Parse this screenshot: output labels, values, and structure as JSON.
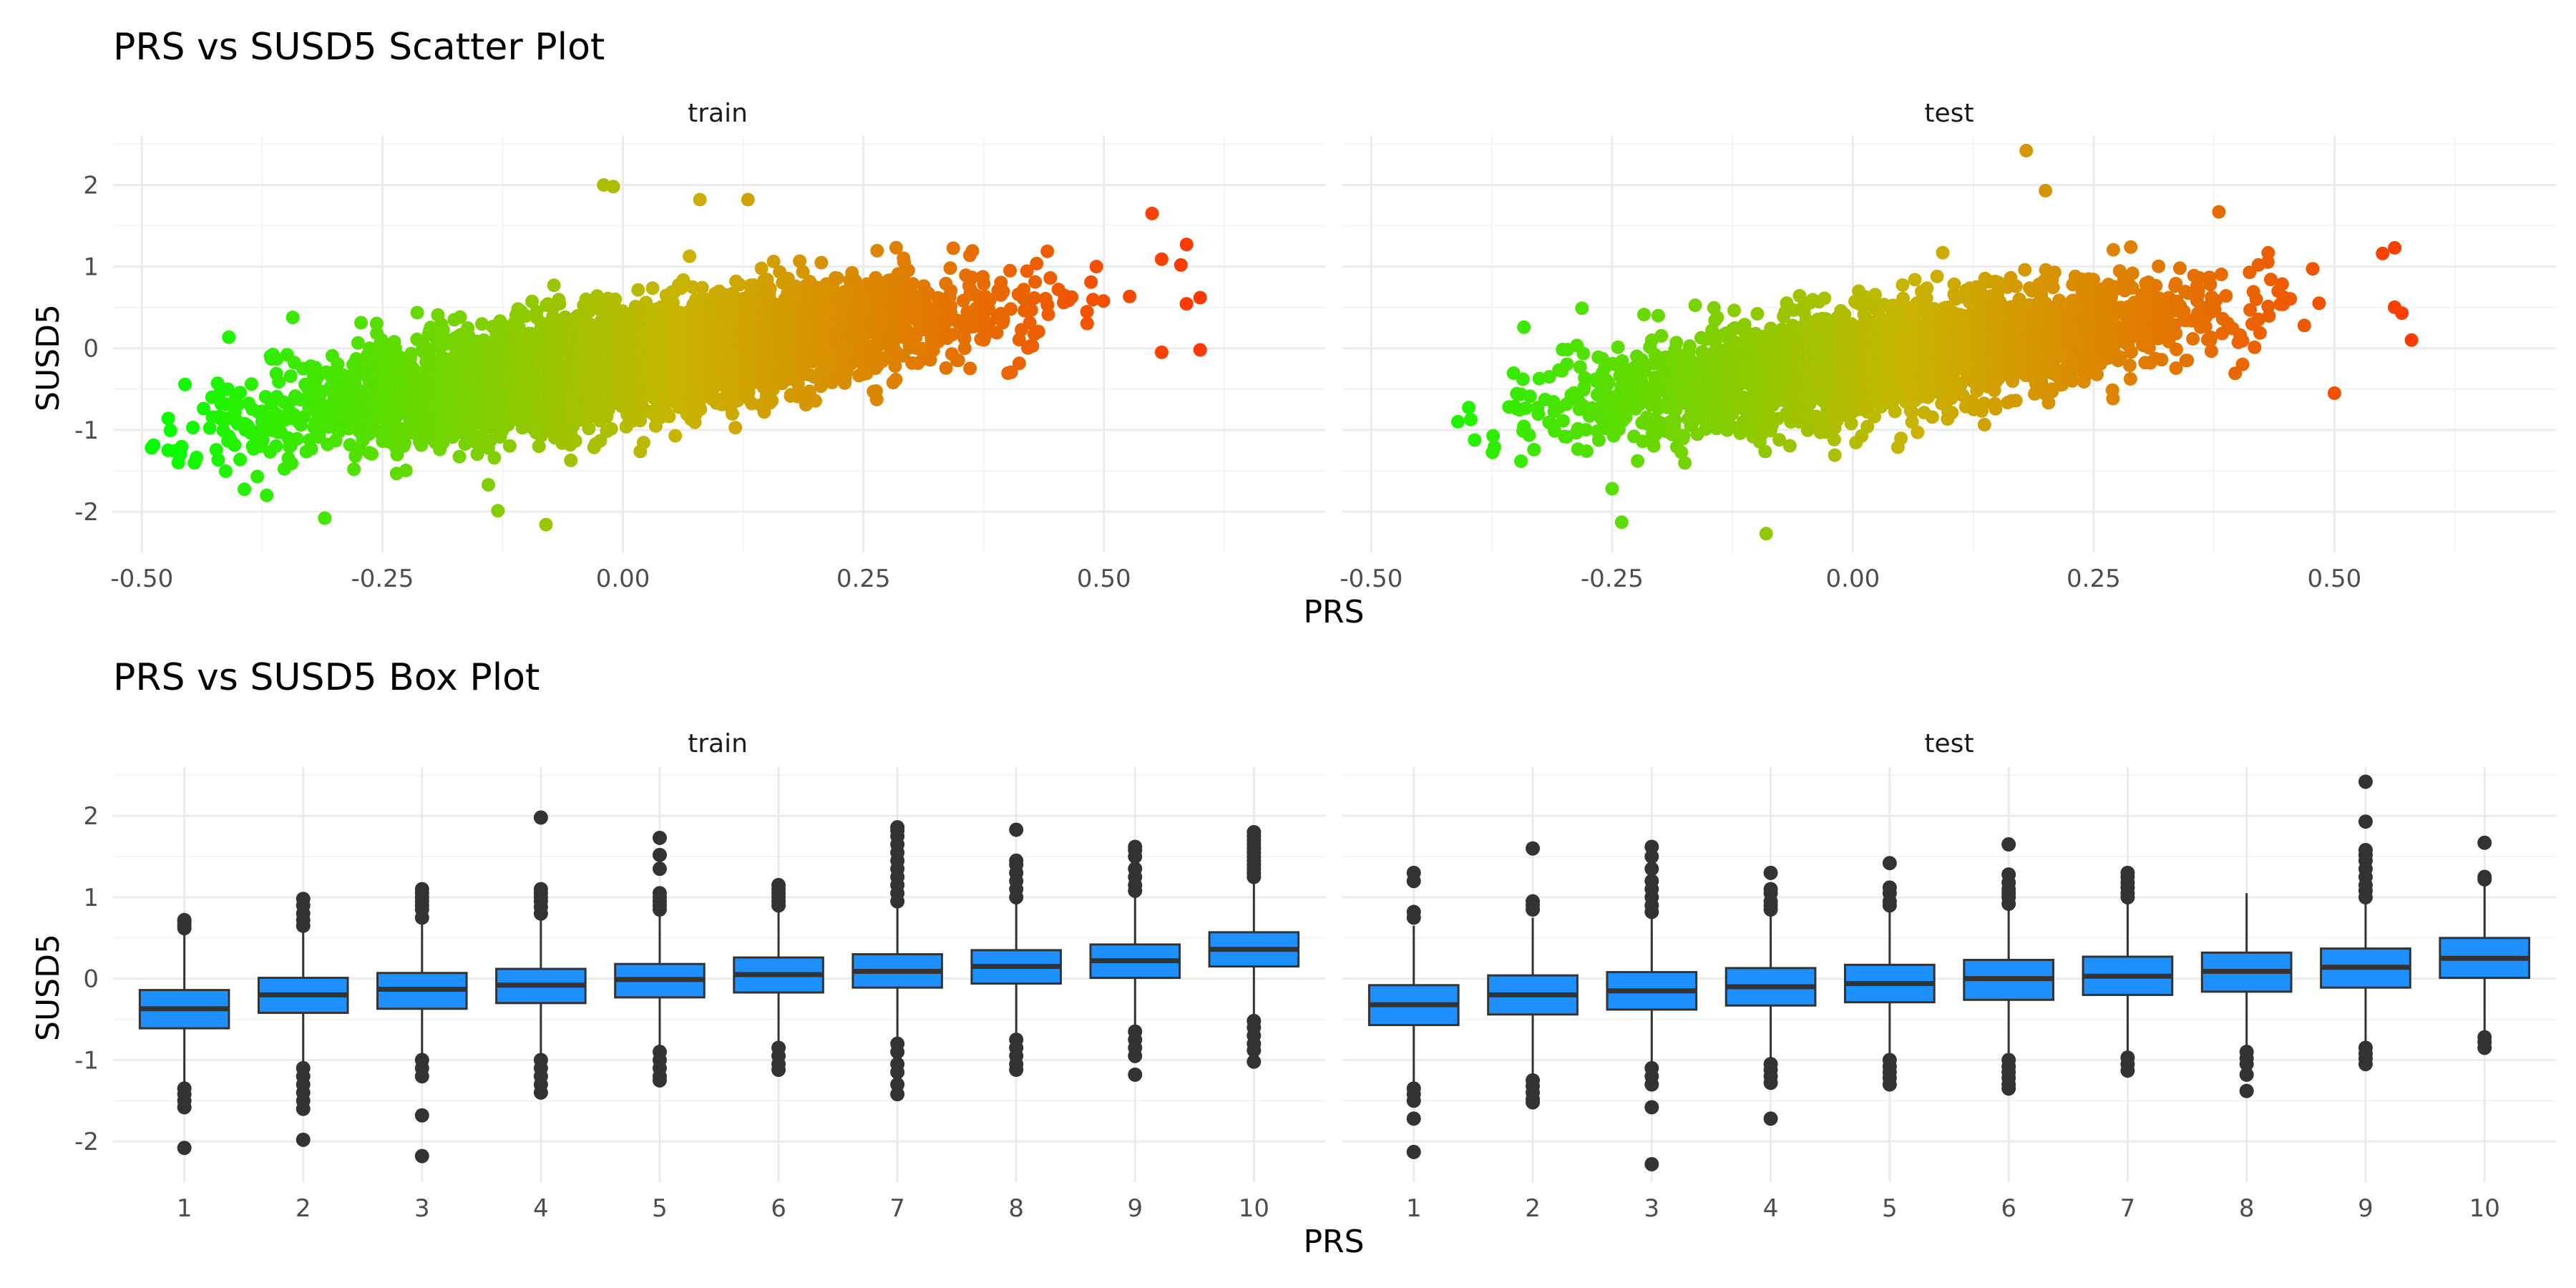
{
  "chart_data": [
    {
      "type": "scatter",
      "title": "PRS vs SUSD5 Scatter Plot",
      "xlabel": "PRS",
      "ylabel": "SUSD5",
      "facets": [
        "train",
        "test"
      ],
      "x_ticks": [
        "-0.50",
        "-0.25",
        "0.00",
        "0.25",
        "0.50"
      ],
      "y_ticks": [
        "-2",
        "-1",
        "0",
        "1",
        "2"
      ],
      "xlim": [
        -0.53,
        0.73
      ],
      "ylim": [
        -2.5,
        2.6
      ],
      "grid": true,
      "color_gradient": {
        "low": "#00ff00",
        "mid": "#c8b400",
        "high": "#ff3300",
        "mapped_to": "PRS"
      },
      "relationship": {
        "slope": 1.8,
        "intercept": -0.18,
        "residual_sd": 0.33
      },
      "series": [
        {
          "facet": "train",
          "x_range": [
            -0.49,
            0.6
          ],
          "n_points": 4200,
          "notable_points": [
            {
              "x": -0.49,
              "y": -1.22
            },
            {
              "x": -0.46,
              "y": -1.28
            },
            {
              "x": -0.31,
              "y": -2.08
            },
            {
              "x": -0.08,
              "y": -2.16
            },
            {
              "x": -0.13,
              "y": -1.99
            },
            {
              "x": -0.02,
              "y": 2.0
            },
            {
              "x": -0.01,
              "y": 1.98
            },
            {
              "x": 0.08,
              "y": 1.82
            },
            {
              "x": 0.13,
              "y": 1.82
            },
            {
              "x": 0.55,
              "y": 1.65
            },
            {
              "x": 0.6,
              "y": 0.62
            },
            {
              "x": 0.6,
              "y": -0.02
            },
            {
              "x": 0.56,
              "y": -0.05
            },
            {
              "x": 0.58,
              "y": 1.02
            }
          ]
        },
        {
          "facet": "test",
          "x_range": [
            -0.41,
            0.58
          ],
          "n_points": 2600,
          "notable_points": [
            {
              "x": 0.18,
              "y": 2.42
            },
            {
              "x": 0.2,
              "y": 1.93
            },
            {
              "x": -0.25,
              "y": -1.72
            },
            {
              "x": -0.24,
              "y": -2.13
            },
            {
              "x": -0.09,
              "y": -2.27
            },
            {
              "x": -0.41,
              "y": -0.9
            },
            {
              "x": 0.58,
              "y": 0.1
            },
            {
              "x": 0.57,
              "y": 0.43
            },
            {
              "x": 0.55,
              "y": 1.16
            },
            {
              "x": 0.5,
              "y": -0.55
            },
            {
              "x": 0.38,
              "y": 1.67
            }
          ]
        }
      ]
    },
    {
      "type": "box",
      "title": "PRS vs SUSD5 Box Plot",
      "xlabel": "PRS",
      "ylabel": "SUSD5",
      "facets": [
        "train",
        "test"
      ],
      "categories": [
        "1",
        "2",
        "3",
        "4",
        "5",
        "6",
        "7",
        "8",
        "9",
        "10"
      ],
      "y_ticks": [
        "-2",
        "-1",
        "0",
        "1",
        "2"
      ],
      "ylim": [
        -2.5,
        2.6
      ],
      "box_color": "#1e90ff",
      "grid": true,
      "series": [
        {
          "facet": "train",
          "boxes": [
            {
              "q1": -0.61,
              "median": -0.37,
              "q3": -0.14,
              "whisker_low": -1.3,
              "whisker_high": 0.58,
              "outliers": [
                0.62,
                0.66,
                0.7,
                0.72,
                -1.35,
                -1.42,
                -1.5,
                -1.58,
                -2.08
              ]
            },
            {
              "q1": -0.42,
              "median": -0.2,
              "q3": 0.01,
              "whisker_low": -1.05,
              "whisker_high": 0.6,
              "outliers": [
                0.65,
                0.72,
                0.8,
                0.9,
                0.98,
                -1.1,
                -1.2,
                -1.3,
                -1.4,
                -1.5,
                -1.6,
                -1.98
              ]
            },
            {
              "q1": -0.37,
              "median": -0.13,
              "q3": 0.07,
              "whisker_low": -0.95,
              "whisker_high": 0.7,
              "outliers": [
                0.75,
                0.85,
                0.9,
                0.95,
                1.0,
                1.05,
                1.1,
                -1.0,
                -1.1,
                -1.2,
                -1.68,
                -2.18
              ]
            },
            {
              "q1": -0.3,
              "median": -0.08,
              "q3": 0.12,
              "whisker_low": -0.95,
              "whisker_high": 0.75,
              "outliers": [
                0.8,
                0.88,
                0.95,
                1.0,
                1.05,
                1.1,
                1.98,
                -1.0,
                -1.1,
                -1.2,
                -1.3,
                -1.4
              ]
            },
            {
              "q1": -0.23,
              "median": -0.01,
              "q3": 0.18,
              "whisker_low": -0.85,
              "whisker_high": 0.8,
              "outliers": [
                0.85,
                0.9,
                0.95,
                1.0,
                1.05,
                1.35,
                1.52,
                1.73,
                -0.9,
                -1.0,
                -1.1,
                -1.2,
                -1.25
              ]
            },
            {
              "q1": -0.17,
              "median": 0.05,
              "q3": 0.26,
              "whisker_low": -0.78,
              "whisker_high": 0.85,
              "outliers": [
                0.9,
                0.95,
                1.0,
                1.05,
                1.1,
                1.15,
                -0.85,
                -0.95,
                -1.05,
                -1.12
              ]
            },
            {
              "q1": -0.11,
              "median": 0.09,
              "q3": 0.3,
              "whisker_low": -0.75,
              "whisker_high": 0.9,
              "outliers": [
                0.95,
                1.05,
                1.15,
                1.25,
                1.35,
                1.45,
                1.55,
                1.65,
                1.75,
                1.82,
                1.86,
                -0.8,
                -0.9,
                -1.05,
                -1.15,
                -1.3,
                -1.42
              ]
            },
            {
              "q1": -0.06,
              "median": 0.15,
              "q3": 0.35,
              "whisker_low": -0.7,
              "whisker_high": 0.95,
              "outliers": [
                1.0,
                1.1,
                1.2,
                1.3,
                1.4,
                1.45,
                1.83,
                -0.75,
                -0.85,
                -0.95,
                -1.05,
                -1.12
              ]
            },
            {
              "q1": 0.01,
              "median": 0.22,
              "q3": 0.42,
              "whisker_low": -0.6,
              "whisker_high": 1.02,
              "outliers": [
                1.08,
                1.15,
                1.25,
                1.35,
                1.5,
                1.58,
                1.62,
                -0.65,
                -0.75,
                -0.85,
                -0.95,
                -1.18
              ]
            },
            {
              "q1": 0.15,
              "median": 0.36,
              "q3": 0.57,
              "whisker_low": -0.48,
              "whisker_high": 1.2,
              "outliers": [
                1.25,
                1.3,
                1.35,
                1.4,
                1.45,
                1.5,
                1.55,
                1.6,
                1.65,
                1.7,
                1.75,
                1.8,
                -0.52,
                -0.6,
                -0.7,
                -0.8,
                -0.88,
                -1.02
              ]
            }
          ]
        },
        {
          "facet": "test",
          "boxes": [
            {
              "q1": -0.57,
              "median": -0.32,
              "q3": -0.08,
              "whisker_low": -1.3,
              "whisker_high": 0.65,
              "outliers": [
                0.75,
                0.82,
                1.2,
                1.3,
                -1.35,
                -1.42,
                -1.5,
                -1.72,
                -2.13
              ]
            },
            {
              "q1": -0.44,
              "median": -0.2,
              "q3": 0.04,
              "whisker_low": -1.2,
              "whisker_high": 0.75,
              "outliers": [
                0.85,
                0.9,
                0.95,
                1.6,
                -1.25,
                -1.32,
                -1.4,
                -1.48,
                -1.52
              ]
            },
            {
              "q1": -0.38,
              "median": -0.15,
              "q3": 0.08,
              "whisker_low": -1.05,
              "whisker_high": 0.75,
              "outliers": [
                0.82,
                0.9,
                1.0,
                1.1,
                1.2,
                1.35,
                1.5,
                1.62,
                -1.1,
                -1.2,
                -1.3,
                -1.58,
                -2.28
              ]
            },
            {
              "q1": -0.33,
              "median": -0.1,
              "q3": 0.13,
              "whisker_low": -1.0,
              "whisker_high": 0.8,
              "outliers": [
                0.85,
                0.9,
                0.95,
                1.05,
                1.1,
                1.3,
                -1.05,
                -1.12,
                -1.2,
                -1.28,
                -1.72
              ]
            },
            {
              "q1": -0.29,
              "median": -0.06,
              "q3": 0.17,
              "whisker_low": -0.95,
              "whisker_high": 0.85,
              "outliers": [
                0.9,
                0.95,
                1.05,
                1.12,
                1.42,
                -1.0,
                -1.08,
                -1.15,
                -1.22,
                -1.3
              ]
            },
            {
              "q1": -0.26,
              "median": 0.0,
              "q3": 0.23,
              "whisker_low": -0.95,
              "whisker_high": 0.85,
              "outliers": [
                0.92,
                1.0,
                1.05,
                1.1,
                1.18,
                1.28,
                1.65,
                -1.0,
                -1.08,
                -1.15,
                -1.22,
                -1.3,
                -1.35
              ]
            },
            {
              "q1": -0.2,
              "median": 0.03,
              "q3": 0.27,
              "whisker_low": -0.9,
              "whisker_high": 0.95,
              "outliers": [
                1.0,
                1.05,
                1.12,
                1.18,
                1.25,
                1.3,
                -0.97,
                -1.05,
                -1.13
              ]
            },
            {
              "q1": -0.16,
              "median": 0.09,
              "q3": 0.32,
              "whisker_low": -0.85,
              "whisker_high": 1.05,
              "outliers": [
                -0.9,
                -0.98,
                -1.05,
                -1.18,
                -1.38
              ]
            },
            {
              "q1": -0.11,
              "median": 0.14,
              "q3": 0.37,
              "whisker_low": -0.78,
              "whisker_high": 0.95,
              "outliers": [
                1.0,
                1.08,
                1.15,
                1.25,
                1.35,
                1.45,
                1.52,
                1.58,
                1.93,
                2.42,
                -0.85,
                -0.92,
                -0.98,
                -1.05
              ]
            },
            {
              "q1": 0.01,
              "median": 0.25,
              "q3": 0.5,
              "whisker_low": -0.68,
              "whisker_high": 1.2,
              "outliers": [
                1.22,
                1.25,
                1.67,
                -0.72,
                -0.78,
                -0.85
              ]
            }
          ]
        }
      ]
    }
  ]
}
